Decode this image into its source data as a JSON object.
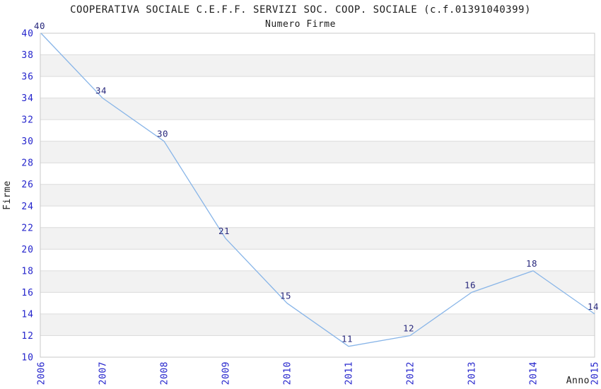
{
  "chart_data": {
    "type": "line",
    "title": "COOPERATIVA SOCIALE C.E.F.F. SERVIZI SOC. COOP. SOCIALE (c.f.01391040399)",
    "subtitle": "Numero Firme",
    "xlabel": "Anno",
    "ylabel": "Firme",
    "categories": [
      "2006",
      "2007",
      "2008",
      "2009",
      "2010",
      "2011",
      "2012",
      "2013",
      "2014",
      "2015"
    ],
    "values": [
      40,
      34,
      30,
      21,
      15,
      11,
      12,
      16,
      18,
      14
    ],
    "ylim": [
      10,
      40
    ],
    "ytick_step": 2,
    "ytick_labels": [
      "10",
      "12",
      "14",
      "16",
      "18",
      "20",
      "22",
      "24",
      "26",
      "28",
      "30",
      "32",
      "34",
      "36",
      "38",
      "40"
    ],
    "data_labels_shown": true,
    "legend": "none",
    "grid": "horizontal-bands-alternating",
    "colors": {
      "background": "#ffffff",
      "line": "#88b5e8",
      "data_label": "#28287c",
      "tick_label": "#2424cc",
      "title_text": "#1c1c1c",
      "band_gray": "#f2f2f2",
      "band_white": "#ffffff",
      "gridline": "#dcdcdc",
      "plot_border": "#c9c9c9"
    }
  }
}
